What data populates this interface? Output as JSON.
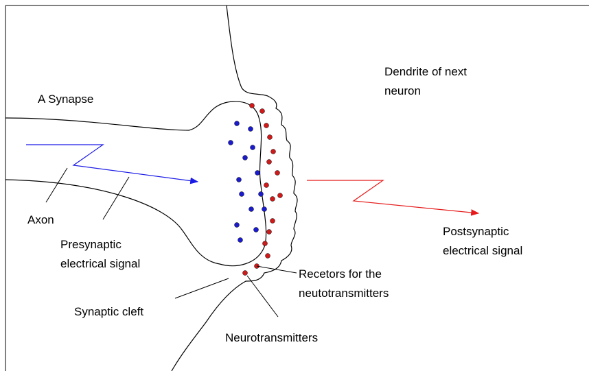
{
  "title": "A Synapse",
  "labels": {
    "dendrite": [
      "Dendrite of next",
      "neuron"
    ],
    "axon": [
      "Axon"
    ],
    "presynaptic": [
      "Presynaptic",
      "electrical signal"
    ],
    "postsynaptic": [
      "Postsynaptic",
      "electrical signal"
    ],
    "cleft": [
      "Synaptic cleft"
    ],
    "receptors": [
      "Recetors for the",
      "neutotransmitters"
    ],
    "neurotransmitters": [
      "Neurotransmitters"
    ]
  }
}
